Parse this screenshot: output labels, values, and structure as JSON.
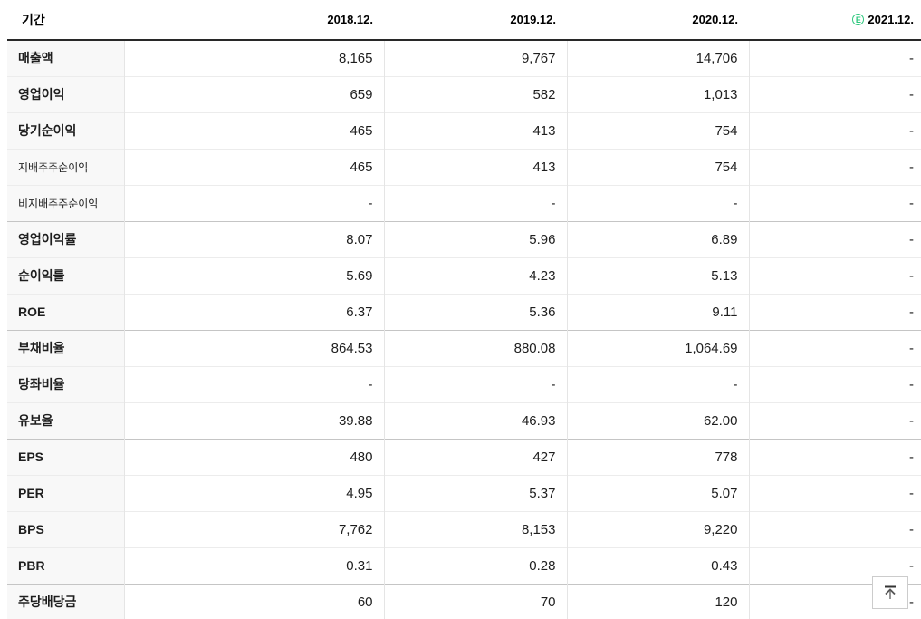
{
  "table": {
    "header": {
      "period_label": "기간",
      "years": [
        "2018.12.",
        "2019.12.",
        "2020.12.",
        "2021.12."
      ],
      "estimate_icon_letter": "E"
    },
    "rows": [
      {
        "label": "매출액",
        "sub": false,
        "section_start": false,
        "values": [
          "8,165",
          "9,767",
          "14,706",
          "-"
        ]
      },
      {
        "label": "영업이익",
        "sub": false,
        "section_start": false,
        "values": [
          "659",
          "582",
          "1,013",
          "-"
        ]
      },
      {
        "label": "당기순이익",
        "sub": false,
        "section_start": false,
        "values": [
          "465",
          "413",
          "754",
          "-"
        ]
      },
      {
        "label": "지배주주순이익",
        "sub": true,
        "section_start": false,
        "values": [
          "465",
          "413",
          "754",
          "-"
        ]
      },
      {
        "label": "비지배주주순이익",
        "sub": true,
        "section_start": false,
        "values": [
          "-",
          "-",
          "-",
          "-"
        ]
      },
      {
        "label": "영업이익률",
        "sub": false,
        "section_start": true,
        "values": [
          "8.07",
          "5.96",
          "6.89",
          "-"
        ]
      },
      {
        "label": "순이익률",
        "sub": false,
        "section_start": false,
        "values": [
          "5.69",
          "4.23",
          "5.13",
          "-"
        ]
      },
      {
        "label": "ROE",
        "sub": false,
        "section_start": false,
        "values": [
          "6.37",
          "5.36",
          "9.11",
          "-"
        ]
      },
      {
        "label": "부채비율",
        "sub": false,
        "section_start": true,
        "values": [
          "864.53",
          "880.08",
          "1,064.69",
          "-"
        ]
      },
      {
        "label": "당좌비율",
        "sub": false,
        "section_start": false,
        "values": [
          "-",
          "-",
          "-",
          "-"
        ]
      },
      {
        "label": "유보율",
        "sub": false,
        "section_start": false,
        "values": [
          "39.88",
          "46.93",
          "62.00",
          "-"
        ]
      },
      {
        "label": "EPS",
        "sub": false,
        "section_start": true,
        "values": [
          "480",
          "427",
          "778",
          "-"
        ]
      },
      {
        "label": "PER",
        "sub": false,
        "section_start": false,
        "values": [
          "4.95",
          "5.37",
          "5.07",
          "-"
        ]
      },
      {
        "label": "BPS",
        "sub": false,
        "section_start": false,
        "values": [
          "7,762",
          "8,153",
          "9,220",
          "-"
        ]
      },
      {
        "label": "PBR",
        "sub": false,
        "section_start": false,
        "values": [
          "0.31",
          "0.28",
          "0.43",
          "-"
        ]
      },
      {
        "label": "주당배당금",
        "sub": false,
        "section_start": true,
        "values": [
          "60",
          "70",
          "120",
          "-"
        ]
      }
    ]
  },
  "icons": {
    "estimate": "circled-E",
    "scroll_to_top": "arrow-up-to-bar"
  },
  "colors": {
    "accent_green": "#2ec87e",
    "header_border": "#282828",
    "section_border": "#c5c5c5",
    "row_border": "#ececec",
    "column_divider": "#e5e5e5",
    "label_column_bg": "#f8f8f8"
  }
}
